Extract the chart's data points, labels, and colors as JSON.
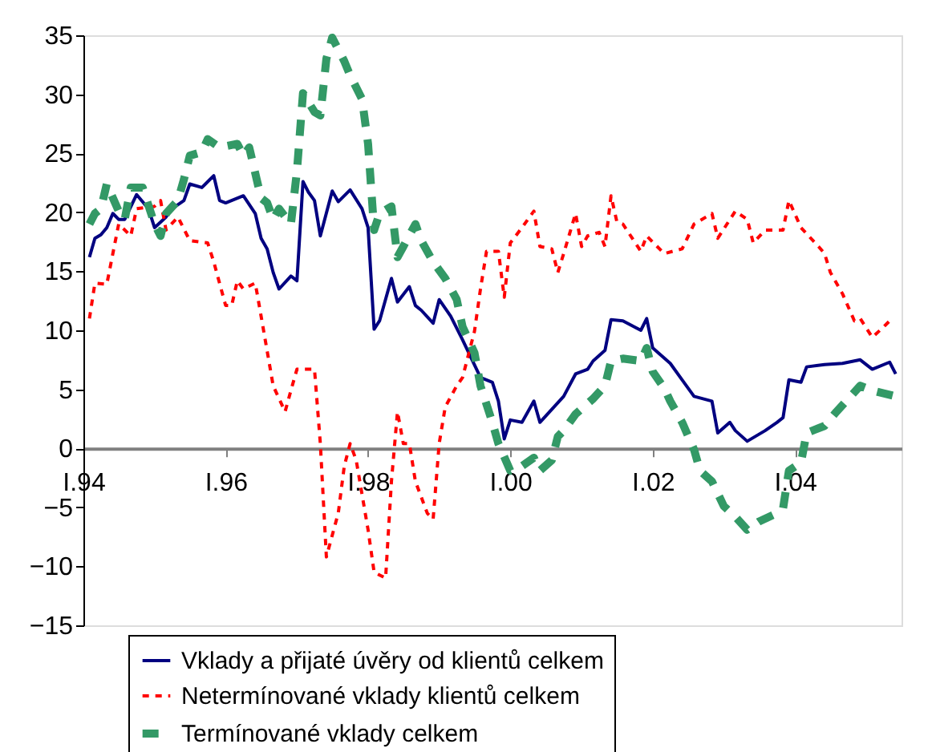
{
  "chart_data": {
    "type": "line",
    "xlim": [
      "1994-01",
      "2005-07"
    ],
    "ylim": [
      -15,
      35
    ],
    "xticks": [
      {
        "value": "1994-01",
        "label": "I.94"
      },
      {
        "value": "1996-01",
        "label": "I.96"
      },
      {
        "value": "1998-01",
        "label": "I.98"
      },
      {
        "value": "2000-01",
        "label": "I.00"
      },
      {
        "value": "2002-01",
        "label": "I.02"
      },
      {
        "value": "2004-01",
        "label": "I.04"
      }
    ],
    "yticks": [
      -15,
      -10,
      -5,
      0,
      5,
      10,
      15,
      20,
      25,
      30,
      35
    ],
    "grid": false,
    "legend": "bottom",
    "marker": "none",
    "series": [
      {
        "name": "Vklady a přijaté úvěry od klientů celkem",
        "color": "#000080",
        "line_style": "solid",
        "x": [
          "1994-02",
          "1994-03",
          "1994-04",
          "1994-05",
          "1994-06",
          "1994-07",
          "1994-08",
          "1994-10",
          "1994-12",
          "1995-01",
          "1995-03",
          "1995-04",
          "1995-06",
          "1995-07",
          "1995-09",
          "1995-11",
          "1995-12",
          "1996-01",
          "1996-04",
          "1996-06",
          "1996-07",
          "1996-08",
          "1996-09",
          "1996-10",
          "1996-12",
          "1997-01",
          "1997-02",
          "1997-03",
          "1997-04",
          "1997-05",
          "1997-07",
          "1997-08",
          "1997-10",
          "1997-12",
          "1998-01",
          "1998-02",
          "1998-03",
          "1998-05",
          "1998-06",
          "1998-08",
          "1998-09",
          "1998-10",
          "1998-12",
          "1999-01",
          "1999-03",
          "1999-05",
          "1999-08",
          "1999-10",
          "1999-11",
          "1999-12",
          "2000-01",
          "2000-03",
          "2000-05",
          "2000-06",
          "2000-08",
          "2000-10",
          "2000-12",
          "2001-02",
          "2001-03",
          "2001-05",
          "2001-06",
          "2001-08",
          "2001-11",
          "2001-12",
          "2002-01",
          "2002-04",
          "2002-06",
          "2002-08",
          "2002-11",
          "2002-12",
          "2003-02",
          "2003-03",
          "2003-05",
          "2003-08",
          "2003-10",
          "2003-11",
          "2003-12",
          "2004-02",
          "2004-03",
          "2004-06",
          "2004-09",
          "2004-12",
          "2005-02",
          "2005-05",
          "2005-06"
        ],
        "values": [
          16.2,
          17.8,
          18.1,
          18.7,
          19.9,
          19.4,
          19.4,
          21.5,
          20.3,
          18.7,
          19.6,
          20.3,
          21.0,
          22.4,
          22.1,
          23.1,
          21.0,
          20.8,
          21.4,
          19.9,
          17.8,
          16.9,
          14.9,
          13.5,
          14.6,
          14.2,
          22.6,
          21.7,
          21.0,
          18.0,
          21.8,
          20.9,
          21.9,
          20.3,
          18.7,
          10.1,
          10.8,
          14.4,
          12.4,
          13.7,
          12.1,
          11.7,
          10.6,
          12.6,
          11.2,
          9.2,
          6.0,
          5.6,
          4.0,
          0.8,
          2.4,
          2.2,
          4.0,
          2.2,
          3.3,
          4.4,
          6.3,
          6.7,
          7.4,
          8.3,
          10.9,
          10.8,
          10.0,
          11.0,
          8.5,
          7.2,
          5.8,
          4.4,
          4.0,
          1.3,
          2.2,
          1.5,
          0.6,
          1.5,
          2.2,
          2.6,
          5.8,
          5.6,
          6.9,
          7.1,
          7.2,
          7.5,
          6.7,
          7.3,
          6.3
        ]
      },
      {
        "name": "Netermínované vklady klientů celkem",
        "color": "#ff0000",
        "line_style": "dotted",
        "x": [
          "1994-02",
          "1994-03",
          "1994-05",
          "1994-07",
          "1994-09",
          "1994-10",
          "1995-01",
          "1995-02",
          "1995-03",
          "1995-05",
          "1995-07",
          "1995-10",
          "1995-11",
          "1996-01",
          "1996-02",
          "1996-03",
          "1996-04",
          "1996-06",
          "1996-07",
          "1996-09",
          "1996-11",
          "1996-12",
          "1997-01",
          "1997-04",
          "1997-05",
          "1997-06",
          "1997-08",
          "1997-09",
          "1997-10",
          "1997-11",
          "1998-01",
          "1998-02",
          "1998-04",
          "1998-05",
          "1998-06",
          "1998-07",
          "1998-08",
          "1998-09",
          "1998-11",
          "1998-12",
          "1999-01",
          "1999-02",
          "1999-04",
          "1999-05",
          "1999-07",
          "1999-08",
          "1999-09",
          "1999-11",
          "1999-12",
          "2000-01",
          "2000-03",
          "2000-05",
          "2000-06",
          "2000-08",
          "2000-09",
          "2000-10",
          "2000-12",
          "2001-01",
          "2001-02",
          "2001-04",
          "2001-05",
          "2001-06",
          "2001-07",
          "2001-08",
          "2001-11",
          "2001-12",
          "2002-03",
          "2002-06",
          "2002-08",
          "2002-11",
          "2002-12",
          "2003-03",
          "2003-05",
          "2003-06",
          "2003-08",
          "2003-11",
          "2003-12",
          "2004-02",
          "2004-05",
          "2004-06",
          "2004-07",
          "2004-09",
          "2004-11",
          "2004-12",
          "2005-02",
          "2005-04",
          "2005-05"
        ],
        "values": [
          11.0,
          14.0,
          13.9,
          19.0,
          18.0,
          20.3,
          20.5,
          21.0,
          18.5,
          19.6,
          17.6,
          17.4,
          15.8,
          12.1,
          12.1,
          14.2,
          13.5,
          14.0,
          11.2,
          5.3,
          3.1,
          4.9,
          6.7,
          6.7,
          0.4,
          -9.2,
          -5.5,
          -1.5,
          0.4,
          -1.0,
          -6.9,
          -10.5,
          -11.0,
          -2.8,
          3.1,
          0.4,
          0.4,
          -2.8,
          -5.5,
          -6.0,
          0.4,
          3.5,
          5.3,
          6.0,
          9.9,
          13.5,
          16.7,
          16.7,
          12.8,
          17.4,
          18.7,
          20.1,
          17.1,
          16.9,
          14.9,
          16.5,
          19.9,
          17.1,
          18.0,
          18.3,
          17.1,
          21.4,
          19.2,
          19.0,
          16.7,
          18.0,
          16.5,
          16.9,
          19.0,
          19.9,
          17.8,
          20.1,
          19.4,
          17.4,
          18.5,
          18.5,
          21.0,
          18.7,
          17.1,
          16.5,
          14.9,
          13.1,
          10.8,
          11.0,
          9.4,
          10.3,
          10.8
        ]
      },
      {
        "name": "Termínované vklady celkem",
        "color": "#339966",
        "line_style": "dashed",
        "x": [
          "1994-02",
          "1994-03",
          "1994-04",
          "1994-05",
          "1994-07",
          "1994-08",
          "1994-09",
          "1994-11",
          "1995-01",
          "1995-02",
          "1995-03",
          "1995-05",
          "1995-06",
          "1995-07",
          "1995-09",
          "1995-10",
          "1995-12",
          "1996-03",
          "1996-04",
          "1996-05",
          "1996-07",
          "1996-08",
          "1996-09",
          "1996-10",
          "1996-12",
          "1997-01",
          "1997-02",
          "1997-04",
          "1997-05",
          "1997-06",
          "1997-07",
          "1997-09",
          "1997-10",
          "1997-12",
          "1998-01",
          "1998-02",
          "1998-03",
          "1998-05",
          "1998-06",
          "1998-07",
          "1998-09",
          "1998-10",
          "1998-12",
          "1999-02",
          "1999-04",
          "1999-05",
          "1999-07",
          "1999-08",
          "1999-10",
          "1999-11",
          "2000-01",
          "2000-03",
          "2000-05",
          "2000-06",
          "2000-08",
          "2000-09",
          "2000-10",
          "2000-12",
          "2001-02",
          "2001-03",
          "2001-05",
          "2001-06",
          "2001-08",
          "2001-11",
          "2001-12",
          "2002-01",
          "2002-03",
          "2002-04",
          "2002-06",
          "2002-08",
          "2002-09",
          "2002-11",
          "2003-01",
          "2003-03",
          "2003-05",
          "2003-07",
          "2003-10",
          "2003-11",
          "2003-12",
          "2004-02",
          "2004-03",
          "2004-06",
          "2004-08",
          "2004-10",
          "2004-12",
          "2005-02",
          "2005-06"
        ],
        "values": [
          19.0,
          19.9,
          20.3,
          22.4,
          20.1,
          19.4,
          22.1,
          22.1,
          19.0,
          18.0,
          19.9,
          21.0,
          22.8,
          24.8,
          25.1,
          26.2,
          25.5,
          25.8,
          24.8,
          25.5,
          21.2,
          20.8,
          19.4,
          20.3,
          19.0,
          23.5,
          30.1,
          28.5,
          28.2,
          33.0,
          34.8,
          32.8,
          31.6,
          29.6,
          25.8,
          18.5,
          19.9,
          20.5,
          16.2,
          17.1,
          19.0,
          17.6,
          15.8,
          14.4,
          12.6,
          10.3,
          8.1,
          5.3,
          2.2,
          0.4,
          -1.9,
          -1.5,
          -0.8,
          -1.9,
          -1.0,
          1.0,
          1.5,
          2.9,
          3.8,
          4.2,
          5.3,
          7.4,
          7.6,
          7.4,
          8.5,
          6.5,
          5.1,
          4.0,
          2.2,
          -0.1,
          -1.9,
          -2.8,
          -4.9,
          -5.8,
          -6.9,
          -6.2,
          -5.5,
          -5.1,
          -1.9,
          -1.2,
          1.3,
          1.9,
          3.1,
          4.2,
          5.3,
          4.9,
          4.4
        ]
      }
    ]
  }
}
